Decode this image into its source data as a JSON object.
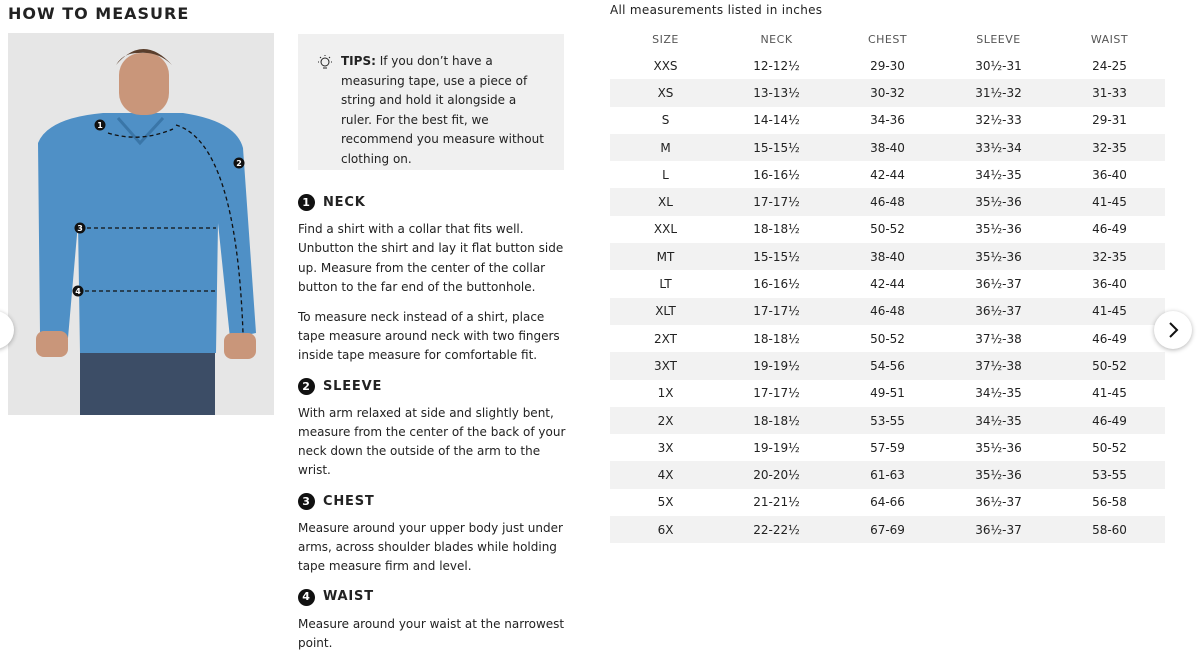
{
  "header": {
    "title": "HOW TO MEASURE",
    "note": "All measurements listed in inches"
  },
  "image_markers": [
    "1",
    "2",
    "3",
    "4"
  ],
  "tips": {
    "label": "TIPS:",
    "text": "If you don’t have a measuring tape, use a piece of string and hold it alongside a ruler. For the best fit, we recommend you measure without clothing on."
  },
  "sections": [
    {
      "number": "1",
      "title": "NECK",
      "paragraphs": [
        "Find a shirt with a collar that fits well. Unbutton the shirt and lay it flat button side up. Measure from the center of the collar button to the far end of the buttonhole.",
        "To measure neck instead of a shirt, place tape measure around neck with two fingers inside tape measure for comfortable fit."
      ]
    },
    {
      "number": "2",
      "title": "SLEEVE",
      "paragraphs": [
        "With arm relaxed at side and slightly bent, measure from the center of the back of your neck down the outside of the arm to the wrist."
      ]
    },
    {
      "number": "3",
      "title": "CHEST",
      "paragraphs": [
        "Measure around your upper body just under arms, across shoulder blades while holding tape measure firm and level."
      ]
    },
    {
      "number": "4",
      "title": "WAIST",
      "paragraphs": [
        "Measure around your waist at the narrowest point."
      ]
    }
  ],
  "table": {
    "columns": [
      "SIZE",
      "NECK",
      "CHEST",
      "SLEEVE",
      "WAIST"
    ],
    "rows": [
      [
        "XXS",
        "12-12½",
        "29-30",
        "30½-31",
        "24-25"
      ],
      [
        "XS",
        "13-13½",
        "30-32",
        "31½-32",
        "31-33"
      ],
      [
        "S",
        "14-14½",
        "34-36",
        "32½-33",
        "29-31"
      ],
      [
        "M",
        "15-15½",
        "38-40",
        "33½-34",
        "32-35"
      ],
      [
        "L",
        "16-16½",
        "42-44",
        "34½-35",
        "36-40"
      ],
      [
        "XL",
        "17-17½",
        "46-48",
        "35½-36",
        "41-45"
      ],
      [
        "XXL",
        "18-18½",
        "50-52",
        "35½-36",
        "46-49"
      ],
      [
        "MT",
        "15-15½",
        "38-40",
        "35½-36",
        "32-35"
      ],
      [
        "LT",
        "16-16½",
        "42-44",
        "36½-37",
        "36-40"
      ],
      [
        "XLT",
        "17-17½",
        "46-48",
        "36½-37",
        "41-45"
      ],
      [
        "2XT",
        "18-18½",
        "50-52",
        "37½-38",
        "46-49"
      ],
      [
        "3XT",
        "19-19½",
        "54-56",
        "37½-38",
        "50-52"
      ],
      [
        "1X",
        "17-17½",
        "49-51",
        "34½-35",
        "41-45"
      ],
      [
        "2X",
        "18-18½",
        "53-55",
        "34½-35",
        "46-49"
      ],
      [
        "3X",
        "19-19½",
        "57-59",
        "35½-36",
        "50-52"
      ],
      [
        "4X",
        "20-20½",
        "61-63",
        "35½-36",
        "53-55"
      ],
      [
        "5X",
        "21-21½",
        "64-66",
        "36½-37",
        "56-58"
      ],
      [
        "6X",
        "22-22½",
        "67-69",
        "36½-37",
        "58-60"
      ]
    ]
  }
}
